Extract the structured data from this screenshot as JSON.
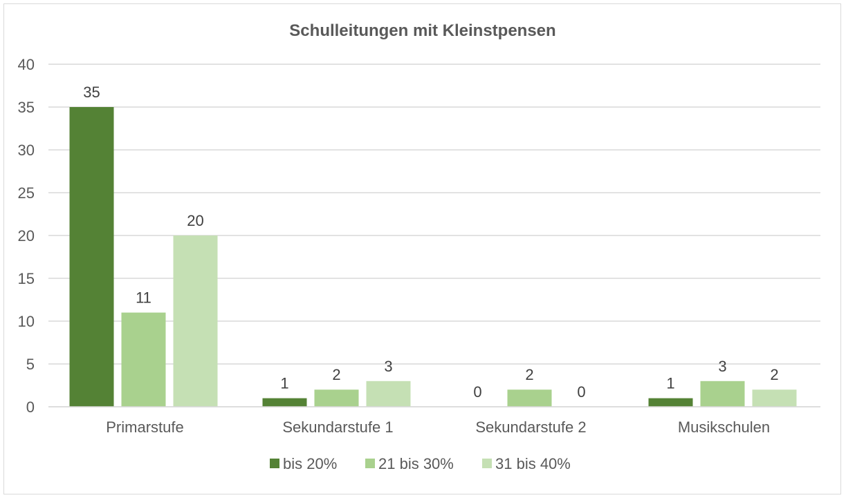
{
  "chart_data": {
    "type": "bar",
    "title": "Schulleitungen mit Kleinstpensen",
    "categories": [
      "Primarstufe",
      "Sekundarstufe 1",
      "Sekundarstufe 2",
      "Musikschulen"
    ],
    "series": [
      {
        "name": "bis 20%",
        "color": "#548235",
        "values": [
          35,
          1,
          0,
          1
        ]
      },
      {
        "name": "21 bis 30%",
        "color": "#a9d18e",
        "values": [
          11,
          2,
          2,
          3
        ]
      },
      {
        "name": "31 bis 40%",
        "color": "#c5e0b4",
        "values": [
          20,
          3,
          0,
          2
        ]
      }
    ],
    "ylim": [
      0,
      40
    ],
    "yticks": [
      "0",
      "5",
      "10",
      "15",
      "20",
      "25",
      "30",
      "35",
      "40"
    ],
    "grid": true,
    "data_labels": true,
    "legend": "bottom"
  }
}
